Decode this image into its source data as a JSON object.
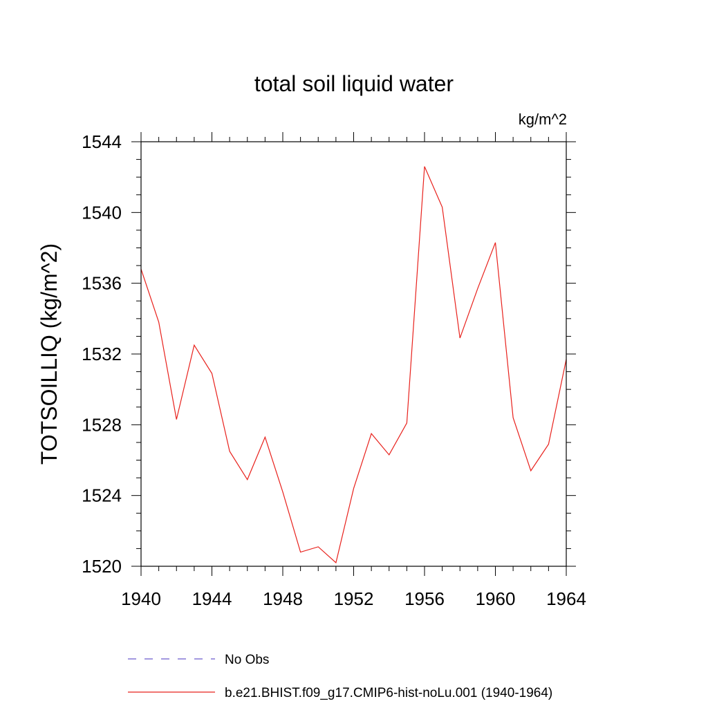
{
  "chart_data": {
    "type": "line",
    "title": "total soil liquid water",
    "units": "kg/m^2",
    "ylabel": "TOTSOILLIQ  (kg/m^2)",
    "xlabel": "",
    "xlim": [
      1940,
      1964
    ],
    "ylim": [
      1520,
      1544
    ],
    "x_ticks": [
      1940,
      1944,
      1948,
      1952,
      1956,
      1960,
      1964
    ],
    "y_ticks": [
      1520,
      1524,
      1528,
      1532,
      1536,
      1540,
      1544
    ],
    "grid": false,
    "legend_position": "bottom",
    "series": [
      {
        "name": "No Obs",
        "color": "#6a5acd",
        "dash": "dashed",
        "x": [],
        "values": []
      },
      {
        "name": "b.e21.BHIST.f09_g17.CMIP6-hist-noLu.001 (1940-1964)",
        "color": "#e8201b",
        "dash": "solid",
        "x": [
          1940,
          1941,
          1942,
          1943,
          1944,
          1945,
          1946,
          1947,
          1948,
          1949,
          1950,
          1951,
          1952,
          1953,
          1954,
          1955,
          1956,
          1957,
          1958,
          1959,
          1960,
          1961,
          1962,
          1963,
          1964
        ],
        "values": [
          1536.8,
          1533.8,
          1528.3,
          1532.5,
          1530.9,
          1526.5,
          1524.9,
          1527.3,
          1524.2,
          1520.8,
          1521.1,
          1520.2,
          1524.4,
          1527.5,
          1526.3,
          1528.1,
          1542.6,
          1540.3,
          1532.9,
          1535.7,
          1538.3,
          1528.4,
          1525.4,
          1526.9,
          1531.7
        ]
      }
    ]
  }
}
